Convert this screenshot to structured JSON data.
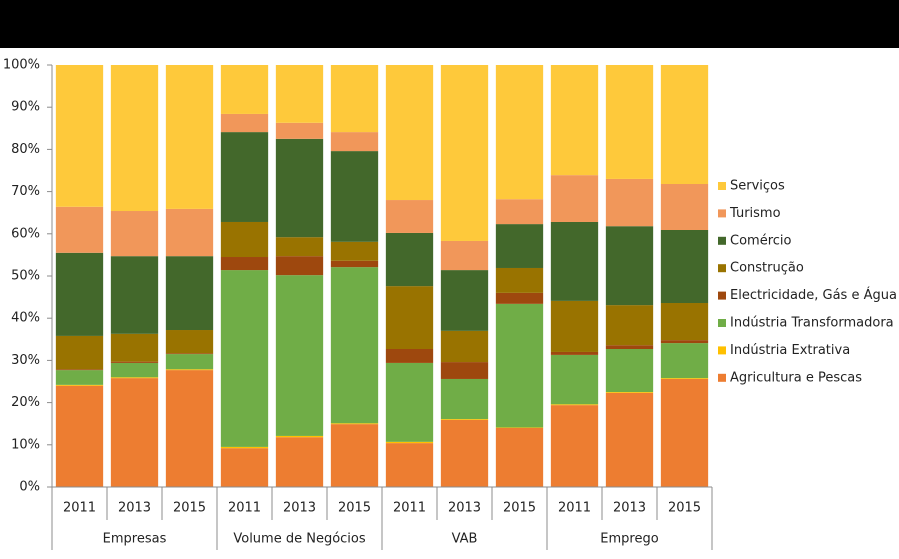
{
  "chart_data": {
    "type": "stacked_bar",
    "categories": [
      "2011",
      "2013",
      "2015",
      "2011",
      "2013",
      "2015",
      "2011",
      "2013",
      "2015",
      "2011",
      "2013",
      "2015"
    ],
    "groups": [
      "Empresas",
      "Volume de Negócios",
      "VAB",
      "Emprego"
    ],
    "series": [
      {
        "name": "Agricultura e Pescas",
        "color": "#ed7d31",
        "values": [
          24,
          25.8,
          27.7,
          9.2,
          11.8,
          14.9,
          10.4,
          15.9,
          14,
          19.4,
          22.3,
          25.6
        ]
      },
      {
        "name": "Indústria Extrativa",
        "color": "#ffc000",
        "values": [
          0.2,
          0.2,
          0.2,
          0.3,
          0.3,
          0.2,
          0.3,
          0.2,
          0.1,
          0.2,
          0.2,
          0.2
        ]
      },
      {
        "name": "Indústria Transformadora",
        "color": "#70ad47",
        "values": [
          3.5,
          3.4,
          3.6,
          41.9,
          38.1,
          37,
          18.7,
          9.5,
          29.3,
          11.7,
          10.2,
          8.3
        ]
      },
      {
        "name": "Electricidade, Gás e Água",
        "color": "#9e480e",
        "values": [
          0.2,
          0.3,
          0.2,
          3.1,
          4.5,
          1.5,
          3.3,
          4,
          2.6,
          0.7,
          0.9,
          0.7
        ]
      },
      {
        "name": "Construção",
        "color": "#997300",
        "values": [
          7.9,
          6.6,
          5.5,
          8.3,
          4.5,
          4.5,
          14.9,
          7.4,
          5.9,
          12.1,
          9.5,
          8.8
        ]
      },
      {
        "name": "Comércio",
        "color": "#43682b",
        "values": [
          19.7,
          18.4,
          17.5,
          21.3,
          23.3,
          21.5,
          12.6,
          14.4,
          10.4,
          18.7,
          18.7,
          17.3
        ]
      },
      {
        "name": "Turismo",
        "color": "#f1975a",
        "values": [
          10.9,
          10.7,
          11.2,
          4.3,
          3.8,
          4.5,
          7.8,
          6.9,
          5.9,
          11.1,
          11.2,
          10.9
        ]
      },
      {
        "name": "Serviços",
        "color": "#fec93b",
        "values": [
          33.6,
          34.6,
          34.1,
          11.6,
          13.7,
          15.9,
          32,
          41.7,
          31.8,
          26.1,
          27,
          28.2
        ]
      }
    ],
    "ylim": [
      0,
      100
    ],
    "yticks": [
      {
        "value": 0,
        "label": "0%"
      },
      {
        "value": 10,
        "label": "10%"
      },
      {
        "value": 20,
        "label": "20%"
      },
      {
        "value": 30,
        "label": "30%"
      },
      {
        "value": 40,
        "label": "40%"
      },
      {
        "value": 50,
        "label": "50%"
      },
      {
        "value": 60,
        "label": "60%"
      },
      {
        "value": 70,
        "label": "70%"
      },
      {
        "value": 80,
        "label": "80%"
      },
      {
        "value": 90,
        "label": "90%"
      },
      {
        "value": 100,
        "label": "100%"
      }
    ],
    "grid": false,
    "legend": "right"
  }
}
